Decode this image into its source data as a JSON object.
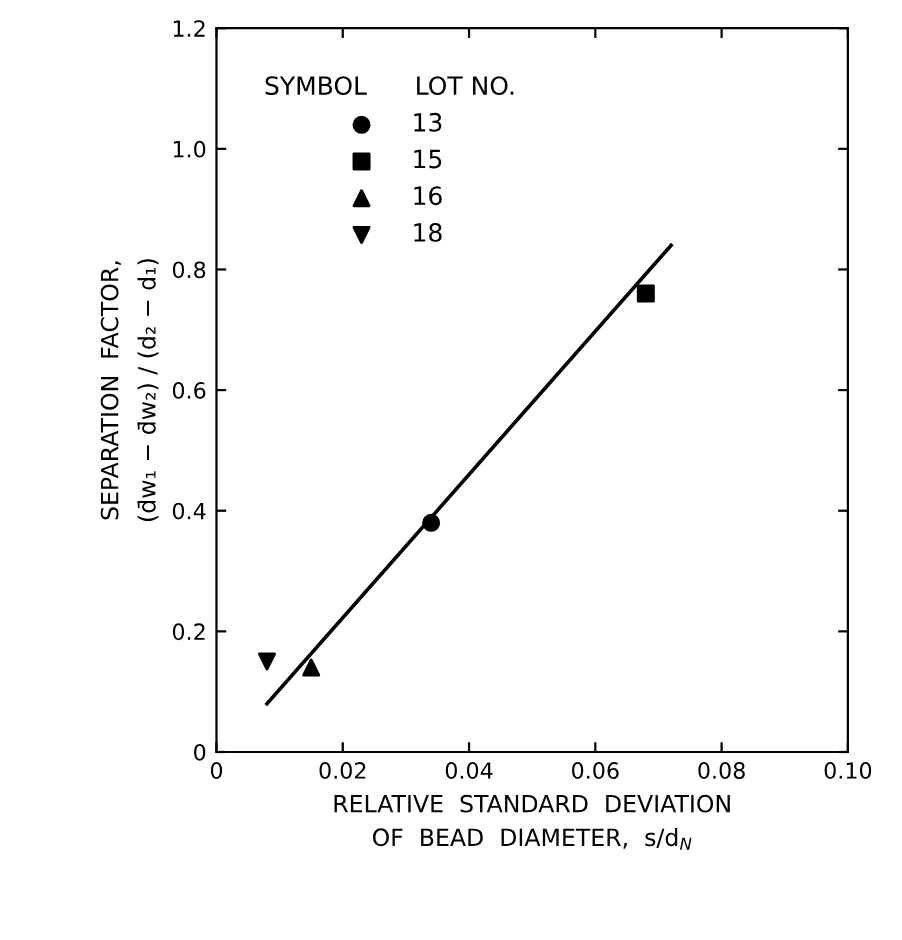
{
  "chart_data": {
    "type": "scatter",
    "xlabel": "RELATIVE  STANDARD  DEVIATION\nOF  BEAD  DIAMETER,  s/d$_{N}$",
    "ylabel": "SEPARATION  FACTOR,\n(d̄w₁ − d̄w₂) / (d₂ − d₁)",
    "legend_title": "SYMBOL      LOT NO.",
    "legend": "top left",
    "grid": false,
    "xlim": [
      0,
      0.1
    ],
    "ylim": [
      0,
      1.2
    ],
    "xticks": [
      0,
      {
        "value": 0.02,
        "label": "0.02"
      },
      {
        "value": 0.04,
        "label": "0.04"
      },
      {
        "value": 0.06,
        "label": "0.06"
      },
      {
        "value": 0.08,
        "label": "0.08"
      },
      {
        "value": 0.1,
        "label": "0.10"
      }
    ],
    "yticks": [
      0,
      0.2,
      0.4,
      0.6,
      0.8,
      {
        "value": 1.0,
        "label": "1.0"
      },
      1.2
    ],
    "series": [
      {
        "name": "13",
        "color": "#000000",
        "marker": "circle",
        "x": [
          0.034
        ],
        "values": [
          0.38
        ]
      },
      {
        "name": "15",
        "color": "#000000",
        "marker": "square",
        "x": [
          0.068
        ],
        "values": [
          0.76
        ]
      },
      {
        "name": "16",
        "color": "#000000",
        "marker": "triangle",
        "x": [
          0.015
        ],
        "values": [
          0.14
        ]
      },
      {
        "name": "18",
        "color": "#000000",
        "marker": "triangle_down",
        "x": [
          0.008
        ],
        "values": [
          0.15
        ]
      },
      {
        "type": "line",
        "color": "#000000",
        "line_style": "solid",
        "marker": "none",
        "x": [
          0.008,
          0.072
        ],
        "values": [
          0.08,
          0.84
        ]
      }
    ]
  }
}
